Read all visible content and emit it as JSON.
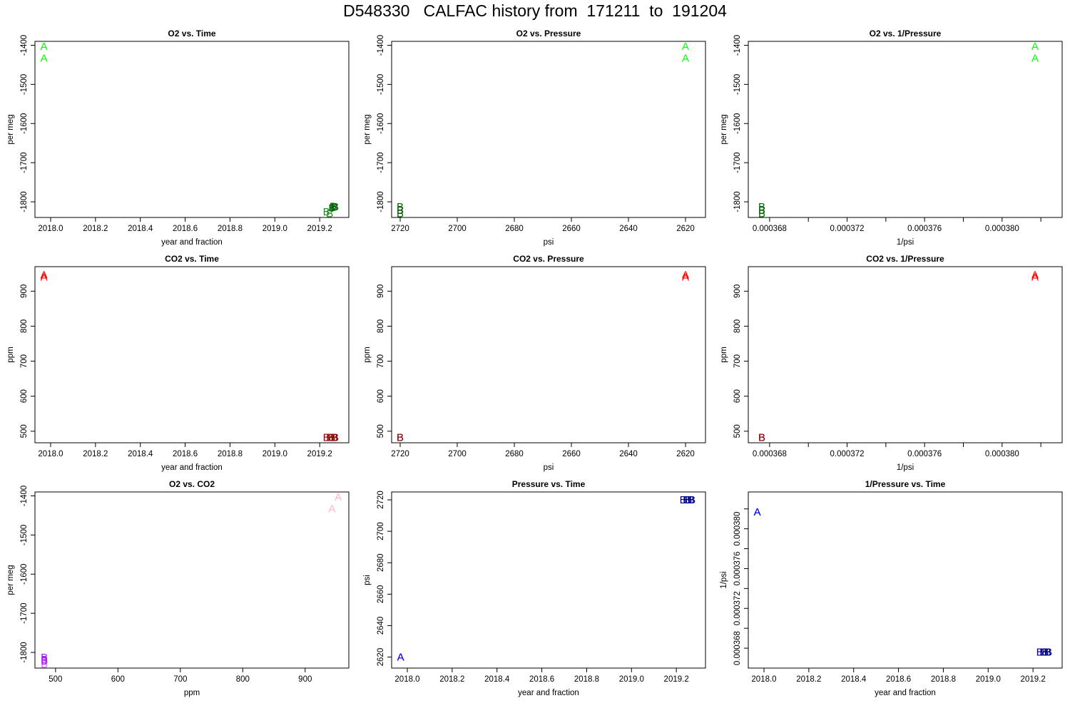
{
  "page": {
    "title": "D548330   CALFAC history from  171211  to  191204"
  },
  "chart_data": [
    {
      "type": "scatter",
      "title": "O2 vs. Time",
      "xlabel": "year and fraction",
      "ylabel": "per meg",
      "xlim": [
        2017.93,
        2019.33
      ],
      "ylim": [
        -1840,
        -1390
      ],
      "xticks": [
        2018.0,
        2018.2,
        2018.4,
        2018.6,
        2018.8,
        2019.0,
        2019.2
      ],
      "xtick_labels": [
        "2018.0",
        "2018.2",
        "2018.4",
        "2018.6",
        "2018.8",
        "2019.0",
        "2019.2"
      ],
      "yticks": [
        -1800,
        -1700,
        -1600,
        -1500,
        -1400
      ],
      "ytick_labels": [
        "-1800",
        "-1700",
        "-1600",
        "-1500",
        "-1400"
      ],
      "series": [
        {
          "name": "A",
          "color": "#00ff00",
          "points": [
            [
              2017.97,
              -1403
            ],
            [
              2017.97,
              -1433
            ]
          ]
        },
        {
          "name": "B",
          "color": "#228b22",
          "points": [
            [
              2019.23,
              -1825
            ],
            [
              2019.245,
              -1830
            ]
          ]
        },
        {
          "name": "B",
          "color": "#006400",
          "points": [
            [
              2019.255,
              -1815
            ],
            [
              2019.26,
              -1812
            ],
            [
              2019.265,
              -1814
            ],
            [
              2019.27,
              -1813
            ]
          ]
        }
      ]
    },
    {
      "type": "scatter",
      "title": "O2 vs. Pressure",
      "xlabel": "psi",
      "ylabel": "per meg",
      "x_reversed": true,
      "xlim": [
        2723,
        2613
      ],
      "ylim": [
        -1840,
        -1390
      ],
      "xticks": [
        2720,
        2700,
        2680,
        2660,
        2640,
        2620
      ],
      "xtick_labels": [
        "2720",
        "2700",
        "2680",
        "2660",
        "2640",
        "2620"
      ],
      "yticks": [
        -1800,
        -1700,
        -1600,
        -1500,
        -1400
      ],
      "ytick_labels": [
        "-1800",
        "-1700",
        "-1600",
        "-1500",
        "-1400"
      ],
      "series": [
        {
          "name": "A",
          "color": "#00ff00",
          "points": [
            [
              2620,
              -1403
            ],
            [
              2620,
              -1433
            ]
          ]
        },
        {
          "name": "B",
          "color": "#006400",
          "points": [
            [
              2720,
              -1813
            ],
            [
              2720,
              -1822
            ],
            [
              2720,
              -1830
            ]
          ]
        }
      ]
    },
    {
      "type": "scatter",
      "title": "O2 vs. 1/Pressure",
      "xlabel": "1/psi",
      "ylabel": "per meg",
      "xlim": [
        0.0003669,
        0.0003831
      ],
      "ylim": [
        -1840,
        -1390
      ],
      "xticks": [
        0.000368,
        0.00037,
        0.000372,
        0.000374,
        0.000376,
        0.000378,
        0.00038,
        0.000382
      ],
      "xtick_labels": [
        "0.000368",
        "",
        "0.000372",
        "",
        "0.000376",
        "",
        "0.000380",
        ""
      ],
      "yticks": [
        -1800,
        -1700,
        -1600,
        -1500,
        -1400
      ],
      "ytick_labels": [
        "-1800",
        "-1700",
        "-1600",
        "-1500",
        "-1400"
      ],
      "series": [
        {
          "name": "A",
          "color": "#00ff00",
          "points": [
            [
              0.0003817,
              -1403
            ],
            [
              0.0003817,
              -1433
            ]
          ]
        },
        {
          "name": "B",
          "color": "#006400",
          "points": [
            [
              0.0003676,
              -1813
            ],
            [
              0.0003676,
              -1822
            ],
            [
              0.0003676,
              -1830
            ]
          ]
        }
      ]
    },
    {
      "type": "scatter",
      "title": "CO2 vs. Time",
      "xlabel": "year and fraction",
      "ylabel": "ppm",
      "xlim": [
        2017.93,
        2019.33
      ],
      "ylim": [
        467,
        970
      ],
      "xticks": [
        2018.0,
        2018.2,
        2018.4,
        2018.6,
        2018.8,
        2019.0,
        2019.2
      ],
      "xtick_labels": [
        "2018.0",
        "2018.2",
        "2018.4",
        "2018.6",
        "2018.8",
        "2019.0",
        "2019.2"
      ],
      "yticks": [
        500,
        600,
        700,
        800,
        900
      ],
      "ytick_labels": [
        "500",
        "600",
        "700",
        "800",
        "900"
      ],
      "series": [
        {
          "name": "A",
          "color": "#ff0000",
          "points": [
            [
              2017.97,
              947
            ],
            [
              2017.97,
              940
            ]
          ]
        },
        {
          "name": "B",
          "color": "#8b0000",
          "points": [
            [
              2019.23,
              482
            ],
            [
              2019.245,
              482
            ],
            [
              2019.255,
              482
            ],
            [
              2019.265,
              482
            ],
            [
              2019.27,
              482
            ]
          ]
        }
      ]
    },
    {
      "type": "scatter",
      "title": "CO2 vs. Pressure",
      "xlabel": "psi",
      "ylabel": "ppm",
      "x_reversed": true,
      "xlim": [
        2723,
        2613
      ],
      "ylim": [
        467,
        970
      ],
      "xticks": [
        2720,
        2700,
        2680,
        2660,
        2640,
        2620
      ],
      "xtick_labels": [
        "2720",
        "2700",
        "2680",
        "2660",
        "2640",
        "2620"
      ],
      "yticks": [
        500,
        600,
        700,
        800,
        900
      ],
      "ytick_labels": [
        "500",
        "600",
        "700",
        "800",
        "900"
      ],
      "series": [
        {
          "name": "A",
          "color": "#ff0000",
          "points": [
            [
              2620,
              947
            ],
            [
              2620,
              940
            ]
          ]
        },
        {
          "name": "B",
          "color": "#8b0000",
          "points": [
            [
              2720,
              482
            ],
            [
              2720,
              482
            ]
          ]
        }
      ]
    },
    {
      "type": "scatter",
      "title": "CO2 vs. 1/Pressure",
      "xlabel": "1/psi",
      "ylabel": "ppm",
      "xlim": [
        0.0003669,
        0.0003831
      ],
      "ylim": [
        467,
        970
      ],
      "xticks": [
        0.000368,
        0.00037,
        0.000372,
        0.000374,
        0.000376,
        0.000378,
        0.00038,
        0.000382
      ],
      "xtick_labels": [
        "0.000368",
        "",
        "0.000372",
        "",
        "0.000376",
        "",
        "0.000380",
        ""
      ],
      "yticks": [
        500,
        600,
        700,
        800,
        900
      ],
      "ytick_labels": [
        "500",
        "600",
        "700",
        "800",
        "900"
      ],
      "series": [
        {
          "name": "A",
          "color": "#ff0000",
          "points": [
            [
              0.0003817,
              947
            ],
            [
              0.0003817,
              940
            ]
          ]
        },
        {
          "name": "B",
          "color": "#8b0000",
          "points": [
            [
              0.0003676,
              482
            ],
            [
              0.0003676,
              482
            ]
          ]
        }
      ]
    },
    {
      "type": "scatter",
      "title": "O2 vs. CO2",
      "xlabel": "ppm",
      "ylabel": "per meg",
      "xlim": [
        467,
        970
      ],
      "ylim": [
        -1840,
        -1390
      ],
      "xticks": [
        500,
        600,
        700,
        800,
        900
      ],
      "xtick_labels": [
        "500",
        "600",
        "700",
        "800",
        "900"
      ],
      "yticks": [
        -1800,
        -1700,
        -1600,
        -1500,
        -1400
      ],
      "ytick_labels": [
        "-1800",
        "-1700",
        "-1600",
        "-1500",
        "-1400"
      ],
      "series": [
        {
          "name": "A",
          "color": "#ffb6c1",
          "points": [
            [
              953,
              -1403
            ],
            [
              943,
              -1433
            ]
          ]
        },
        {
          "name": "B",
          "color": "#da70d6",
          "points": [
            [
              482,
              -1830
            ]
          ]
        },
        {
          "name": "B",
          "color": "#a020f0",
          "points": [
            [
              482,
              -1813
            ],
            [
              482,
              -1818
            ],
            [
              482,
              -1822
            ]
          ]
        }
      ]
    },
    {
      "type": "scatter",
      "title": "Pressure vs. Time",
      "xlabel": "year and fraction",
      "ylabel": "psi",
      "xlim": [
        2017.93,
        2019.33
      ],
      "ylim": [
        2613,
        2725
      ],
      "xticks": [
        2018.0,
        2018.2,
        2018.4,
        2018.6,
        2018.8,
        2019.0,
        2019.2
      ],
      "xtick_labels": [
        "2018.0",
        "2018.2",
        "2018.4",
        "2018.6",
        "2018.8",
        "2019.0",
        "2019.2"
      ],
      "yticks": [
        2620,
        2640,
        2660,
        2680,
        2700,
        2720
      ],
      "ytick_labels": [
        "2620",
        "2640",
        "2660",
        "2680",
        "2700",
        "2720"
      ],
      "series": [
        {
          "name": "A",
          "color": "#0000ff",
          "points": [
            [
              2017.97,
              2620
            ],
            [
              2017.97,
              2620
            ]
          ]
        },
        {
          "name": "B",
          "color": "#00008b",
          "points": [
            [
              2019.23,
              2720
            ],
            [
              2019.245,
              2720
            ],
            [
              2019.255,
              2720
            ],
            [
              2019.265,
              2720
            ],
            [
              2019.27,
              2720
            ]
          ]
        }
      ]
    },
    {
      "type": "scatter",
      "title": "1/Pressure vs. Time",
      "xlabel": "year and fraction",
      "ylabel": "1/psi",
      "xlim": [
        2017.93,
        2019.33
      ],
      "ylim": [
        0.000366,
        0.0003837
      ],
      "xticks": [
        2018.0,
        2018.2,
        2018.4,
        2018.6,
        2018.8,
        2019.0,
        2019.2
      ],
      "xtick_labels": [
        "2018.0",
        "2018.2",
        "2018.4",
        "2018.6",
        "2018.8",
        "2019.0",
        "2019.2"
      ],
      "yticks": [
        0.000368,
        0.00037,
        0.000372,
        0.000374,
        0.000376,
        0.000378,
        0.00038,
        0.000382
      ],
      "ytick_labels": [
        "0.000368",
        "",
        "0.000372",
        "",
        "0.000376",
        "",
        "0.000380",
        ""
      ],
      "series": [
        {
          "name": "A",
          "color": "#0000ff",
          "points": [
            [
              2017.97,
              0.0003817
            ],
            [
              2017.97,
              0.0003817
            ]
          ]
        },
        {
          "name": "B",
          "color": "#00008b",
          "points": [
            [
              2019.23,
              0.0003676
            ],
            [
              2019.245,
              0.0003676
            ],
            [
              2019.255,
              0.0003676
            ],
            [
              2019.265,
              0.0003676
            ],
            [
              2019.27,
              0.0003676
            ]
          ]
        }
      ]
    }
  ]
}
